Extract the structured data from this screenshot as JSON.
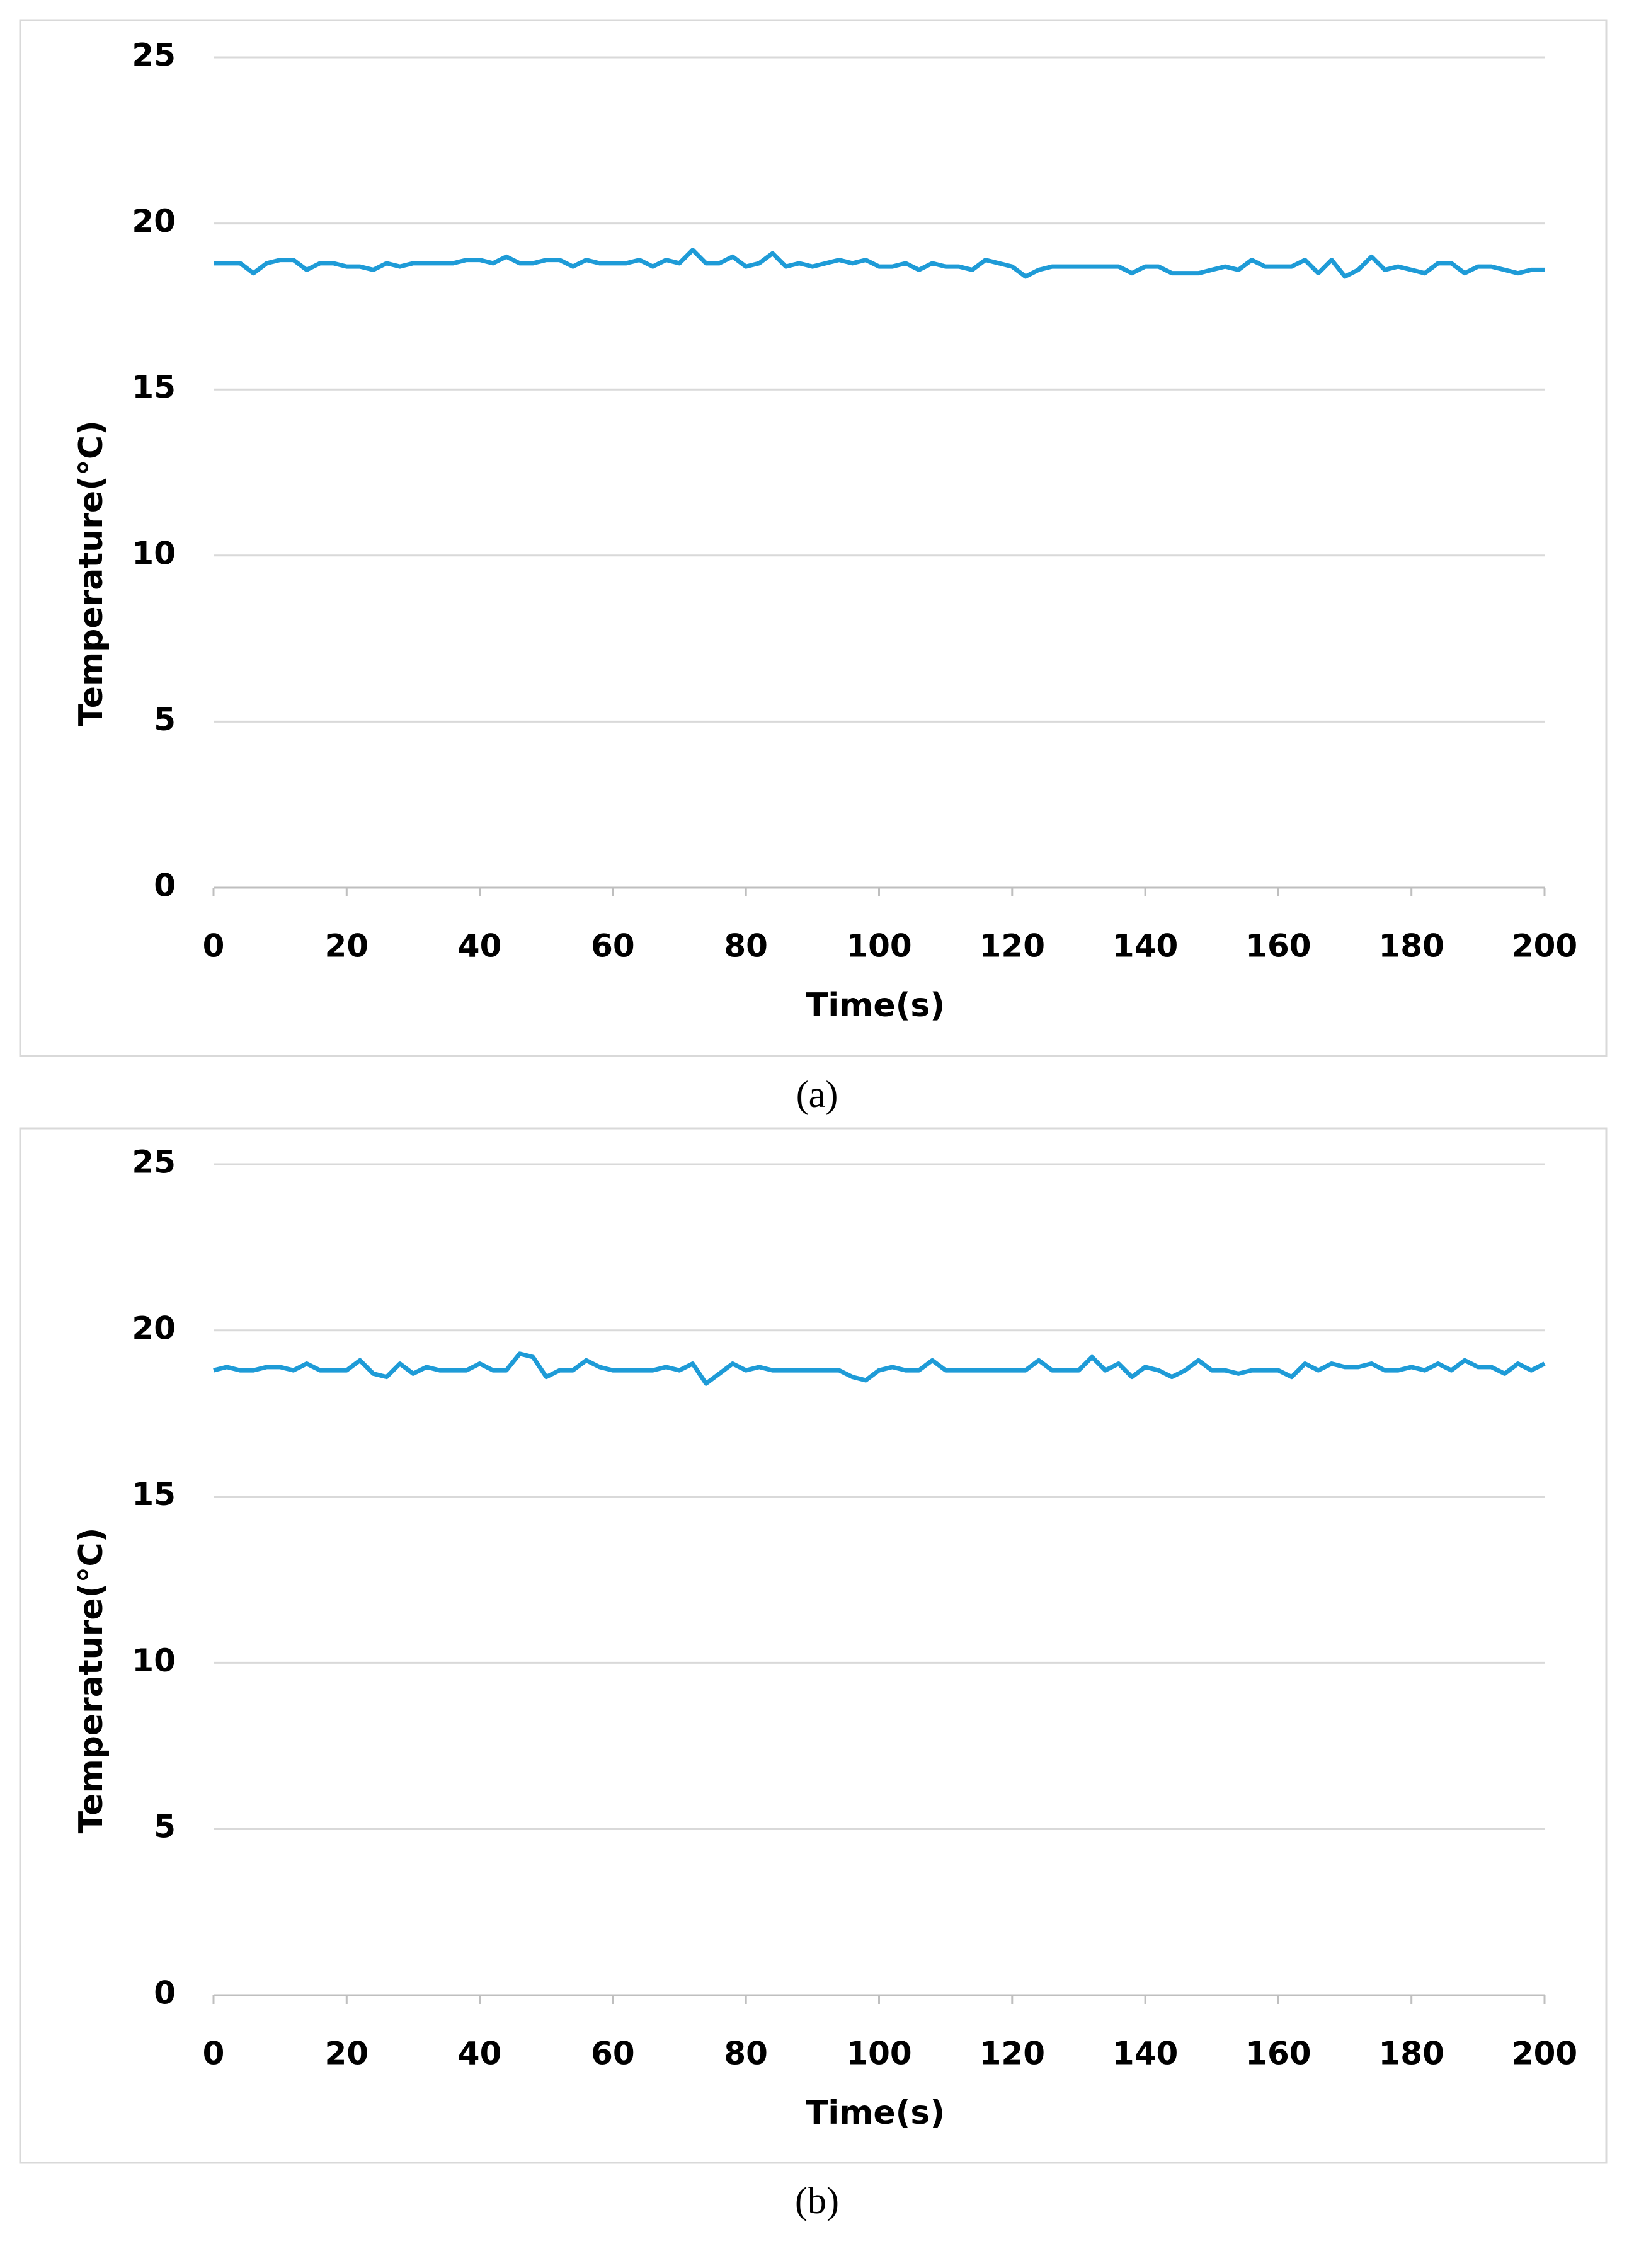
{
  "chart_data": [
    {
      "type": "line",
      "caption": "(a)",
      "x_label": "Time(s)",
      "y_label": "Temperature(°C)",
      "xlim": [
        0,
        200
      ],
      "xticks": [
        0,
        20,
        40,
        60,
        80,
        100,
        120,
        140,
        160,
        180,
        200
      ],
      "ylim": [
        0,
        25
      ],
      "yticks": [
        0,
        5,
        10,
        15,
        20,
        25
      ],
      "grid": true,
      "x": [
        0,
        2,
        4,
        6,
        8,
        10,
        12,
        14,
        16,
        18,
        20,
        22,
        24,
        26,
        28,
        30,
        32,
        34,
        36,
        38,
        40,
        42,
        44,
        46,
        48,
        50,
        52,
        54,
        56,
        58,
        60,
        62,
        64,
        66,
        68,
        70,
        72,
        74,
        76,
        78,
        80,
        82,
        84,
        86,
        88,
        90,
        92,
        94,
        96,
        98,
        100,
        102,
        104,
        106,
        108,
        110,
        112,
        114,
        116,
        118,
        120,
        122,
        124,
        126,
        128,
        130,
        132,
        134,
        136,
        138,
        140,
        142,
        144,
        146,
        148,
        150,
        152,
        154,
        156,
        158,
        160,
        162,
        164,
        166,
        168,
        170,
        172,
        174,
        176,
        178,
        180,
        182,
        184,
        186,
        188,
        190,
        192,
        194,
        196,
        198,
        200
      ],
      "series": [
        {
          "color": "#1e9bd7",
          "values": [
            18.8,
            18.8,
            18.8,
            18.5,
            18.8,
            18.9,
            18.9,
            18.6,
            18.8,
            18.8,
            18.7,
            18.7,
            18.6,
            18.8,
            18.7,
            18.8,
            18.8,
            18.8,
            18.8,
            18.9,
            18.9,
            18.8,
            19.0,
            18.8,
            18.8,
            18.9,
            18.9,
            18.7,
            18.9,
            18.8,
            18.8,
            18.8,
            18.9,
            18.7,
            18.9,
            18.8,
            19.2,
            18.8,
            18.8,
            19.0,
            18.7,
            18.8,
            19.1,
            18.7,
            18.8,
            18.7,
            18.8,
            18.9,
            18.8,
            18.9,
            18.7,
            18.7,
            18.8,
            18.6,
            18.8,
            18.7,
            18.7,
            18.6,
            18.9,
            18.8,
            18.7,
            18.4,
            18.6,
            18.7,
            18.7,
            18.7,
            18.7,
            18.7,
            18.7,
            18.5,
            18.7,
            18.7,
            18.5,
            18.5,
            18.5,
            18.6,
            18.7,
            18.6,
            18.9,
            18.7,
            18.7,
            18.7,
            18.9,
            18.5,
            18.9,
            18.4,
            18.6,
            19.0,
            18.6,
            18.7,
            18.6,
            18.5,
            18.8,
            18.8,
            18.5,
            18.7,
            18.7,
            18.6,
            18.5,
            18.6,
            18.6
          ]
        }
      ]
    },
    {
      "type": "line",
      "caption": "(b)",
      "x_label": "Time(s)",
      "y_label": "Temperature(°C)",
      "xlim": [
        0,
        200
      ],
      "xticks": [
        0,
        20,
        40,
        60,
        80,
        100,
        120,
        140,
        160,
        180,
        200
      ],
      "ylim": [
        0,
        25
      ],
      "yticks": [
        0,
        5,
        10,
        15,
        20,
        25
      ],
      "grid": true,
      "x": [
        0,
        2,
        4,
        6,
        8,
        10,
        12,
        14,
        16,
        18,
        20,
        22,
        24,
        26,
        28,
        30,
        32,
        34,
        36,
        38,
        40,
        42,
        44,
        46,
        48,
        50,
        52,
        54,
        56,
        58,
        60,
        62,
        64,
        66,
        68,
        70,
        72,
        74,
        76,
        78,
        80,
        82,
        84,
        86,
        88,
        90,
        92,
        94,
        96,
        98,
        100,
        102,
        104,
        106,
        108,
        110,
        112,
        114,
        116,
        118,
        120,
        122,
        124,
        126,
        128,
        130,
        132,
        134,
        136,
        138,
        140,
        142,
        144,
        146,
        148,
        150,
        152,
        154,
        156,
        158,
        160,
        162,
        164,
        166,
        168,
        170,
        172,
        174,
        176,
        178,
        180,
        182,
        184,
        186,
        188,
        190,
        192,
        194,
        196,
        198,
        200
      ],
      "series": [
        {
          "color": "#1e9bd7",
          "values": [
            18.8,
            18.9,
            18.8,
            18.8,
            18.9,
            18.9,
            18.8,
            19.0,
            18.8,
            18.8,
            18.8,
            19.1,
            18.7,
            18.6,
            19.0,
            18.7,
            18.9,
            18.8,
            18.8,
            18.8,
            19.0,
            18.8,
            18.8,
            19.3,
            19.2,
            18.6,
            18.8,
            18.8,
            19.1,
            18.9,
            18.8,
            18.8,
            18.8,
            18.8,
            18.9,
            18.8,
            19.0,
            18.4,
            18.7,
            19.0,
            18.8,
            18.9,
            18.8,
            18.8,
            18.8,
            18.8,
            18.8,
            18.8,
            18.6,
            18.5,
            18.8,
            18.9,
            18.8,
            18.8,
            19.1,
            18.8,
            18.8,
            18.8,
            18.8,
            18.8,
            18.8,
            18.8,
            19.1,
            18.8,
            18.8,
            18.8,
            19.2,
            18.8,
            19.0,
            18.6,
            18.9,
            18.8,
            18.6,
            18.8,
            19.1,
            18.8,
            18.8,
            18.7,
            18.8,
            18.8,
            18.8,
            18.6,
            19.0,
            18.8,
            19.0,
            18.9,
            18.9,
            19.0,
            18.8,
            18.8,
            18.9,
            18.8,
            19.0,
            18.8,
            19.1,
            18.9,
            18.9,
            18.7,
            19.0,
            18.8,
            19.0
          ]
        }
      ]
    }
  ]
}
